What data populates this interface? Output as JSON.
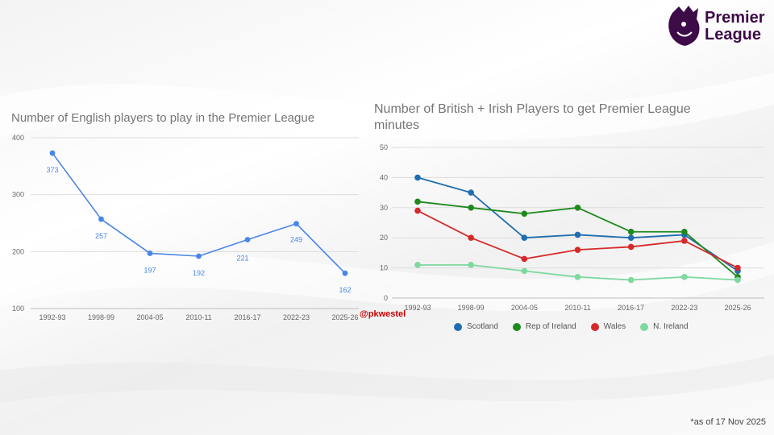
{
  "brand": {
    "name_line1": "Premier",
    "name_line2": "League"
  },
  "credit": "@pkwestel",
  "footnote": "*as of 17 Nov 2025",
  "chart_data": [
    {
      "type": "line",
      "title": "Number of English players to play in the Premier League",
      "categories": [
        "1992-93",
        "1998-99",
        "2004-05",
        "2010-11",
        "2016-17",
        "2022-23",
        "2025-26"
      ],
      "series": [
        {
          "name": "English players",
          "color": "#4a86e8",
          "values": [
            373,
            257,
            197,
            192,
            221,
            249,
            162
          ]
        }
      ],
      "data_labels": [
        "373",
        "257",
        "197",
        "192",
        "221",
        "249",
        "162"
      ],
      "yticks": [
        "100",
        "200",
        "300",
        "400"
      ],
      "ylim": [
        100,
        400
      ],
      "xlabel": "",
      "ylabel": "",
      "grid": true,
      "legend": "none"
    },
    {
      "type": "line",
      "title": "Number of British + Irish Players to get Premier League minutes",
      "categories": [
        "1992-93",
        "1998-99",
        "2004-05",
        "2010-11",
        "2016-17",
        "2022-23",
        "2025-26"
      ],
      "series": [
        {
          "name": "Scotland",
          "color": "#1f6eb0",
          "values": [
            40,
            35,
            20,
            21,
            20,
            21,
            9
          ]
        },
        {
          "name": "Rep of Ireland",
          "color": "#1e8a1e",
          "values": [
            32,
            30,
            28,
            30,
            22,
            22,
            7
          ]
        },
        {
          "name": "Wales",
          "color": "#d62a2a",
          "values": [
            29,
            20,
            13,
            16,
            17,
            19,
            10
          ]
        },
        {
          "name": "N. Ireland",
          "color": "#7fd8a0",
          "values": [
            11,
            11,
            9,
            7,
            6,
            7,
            6
          ]
        }
      ],
      "yticks": [
        "0",
        "10",
        "20",
        "30",
        "40",
        "50"
      ],
      "ylim": [
        0,
        50
      ],
      "xlabel": "",
      "ylabel": "",
      "grid": true,
      "legend": "bottom"
    }
  ]
}
